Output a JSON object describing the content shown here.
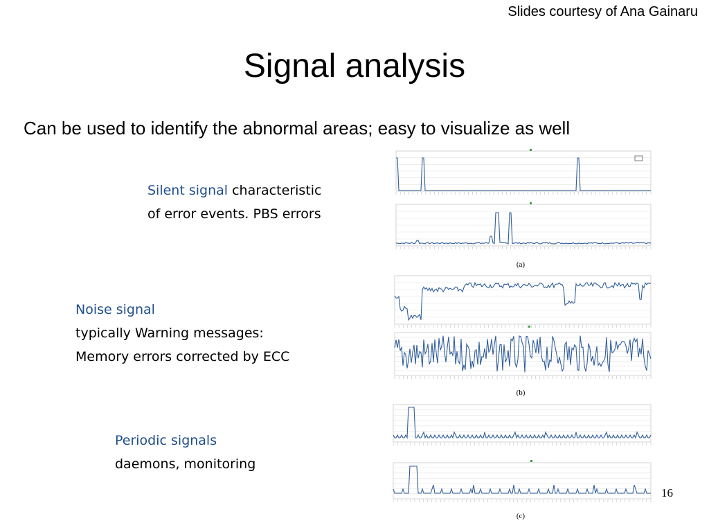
{
  "credit": "Slides courtesy of Ana Gainaru",
  "title": "Signal analysis",
  "subtitle": "Can be used to identify the abnormal areas; easy to visualize as well",
  "items": [
    {
      "highlight": "Silent signal",
      "rest": " characteristic",
      "line2": "of error events. PBS errors"
    },
    {
      "highlight": "Noise signal",
      "line2": "typically Warning messages:",
      "line3": "Memory errors corrected by ECC"
    },
    {
      "highlight": "Periodic signals",
      "line2": "daemons, monitoring"
    }
  ],
  "figure_labels": [
    "(a)",
    "(b)",
    "(c)"
  ],
  "page_number": "16",
  "accent_color": "#1f4e8c",
  "series_color": "#2f5d9a"
}
